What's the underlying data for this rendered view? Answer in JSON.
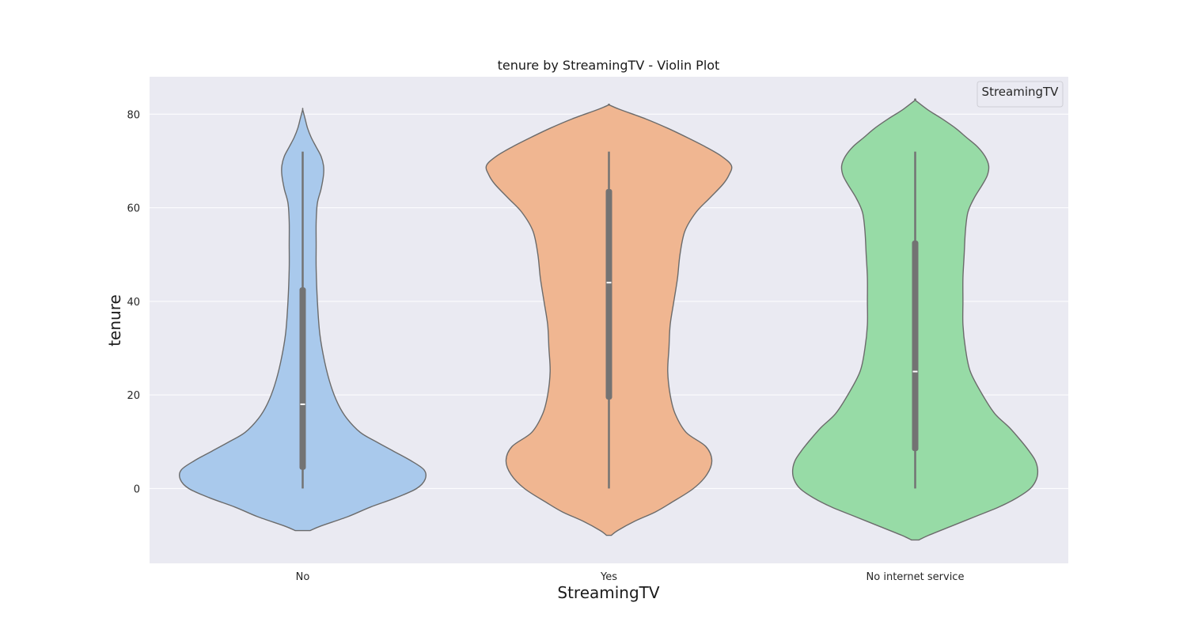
{
  "chart_data": {
    "type": "violin",
    "title": "tenure by StreamingTV - Violin Plot",
    "xlabel": "StreamingTV",
    "ylabel": "tenure",
    "ylim": [
      -16,
      88
    ],
    "yticks": [
      0,
      20,
      40,
      60,
      80
    ],
    "grid": true,
    "legend": {
      "title": "StreamingTV",
      "placement": "top-right"
    },
    "categories": [
      "No",
      "Yes",
      "No internet service"
    ],
    "violins": [
      {
        "category": "No",
        "color": "#a9c9ec",
        "min": 0,
        "q1": 4,
        "median": 18,
        "q3": 43,
        "max": 72,
        "kde_extent": [
          -9,
          81
        ],
        "density": [
          [
            -9,
            0.06
          ],
          [
            -8,
            0.15
          ],
          [
            -6,
            0.37
          ],
          [
            -4,
            0.55
          ],
          [
            -2,
            0.76
          ],
          [
            0,
            0.93
          ],
          [
            2,
            1.0
          ],
          [
            4,
            0.99
          ],
          [
            6,
            0.88
          ],
          [
            8,
            0.74
          ],
          [
            10,
            0.6
          ],
          [
            12,
            0.47
          ],
          [
            15,
            0.36
          ],
          [
            18,
            0.29
          ],
          [
            22,
            0.23
          ],
          [
            27,
            0.18
          ],
          [
            33,
            0.14
          ],
          [
            40,
            0.12
          ],
          [
            47,
            0.11
          ],
          [
            52,
            0.11
          ],
          [
            57,
            0.11
          ],
          [
            61,
            0.12
          ],
          [
            64,
            0.15
          ],
          [
            67,
            0.17
          ],
          [
            69,
            0.17
          ],
          [
            71,
            0.15
          ],
          [
            73,
            0.11
          ],
          [
            75,
            0.07
          ],
          [
            77,
            0.04
          ],
          [
            79,
            0.02
          ],
          [
            81,
            0.0
          ]
        ]
      },
      {
        "category": "Yes",
        "color": "#f0b691",
        "min": 0,
        "q1": 19,
        "median": 44,
        "q3": 64,
        "max": 72,
        "kde_extent": [
          -10,
          82
        ],
        "density": [
          [
            -10,
            0.02
          ],
          [
            -9,
            0.07
          ],
          [
            -7,
            0.21
          ],
          [
            -5,
            0.38
          ],
          [
            -3,
            0.51
          ],
          [
            0,
            0.69
          ],
          [
            3,
            0.8
          ],
          [
            6,
            0.84
          ],
          [
            9,
            0.79
          ],
          [
            12,
            0.63
          ],
          [
            16,
            0.54
          ],
          [
            20,
            0.5
          ],
          [
            25,
            0.48
          ],
          [
            30,
            0.49
          ],
          [
            35,
            0.5
          ],
          [
            40,
            0.53
          ],
          [
            45,
            0.56
          ],
          [
            50,
            0.58
          ],
          [
            55,
            0.62
          ],
          [
            59,
            0.71
          ],
          [
            62,
            0.82
          ],
          [
            65,
            0.93
          ],
          [
            67,
            0.98
          ],
          [
            69,
            1.0
          ],
          [
            71,
            0.92
          ],
          [
            73,
            0.79
          ],
          [
            75,
            0.64
          ],
          [
            77,
            0.48
          ],
          [
            79,
            0.3
          ],
          [
            81,
            0.09
          ],
          [
            82,
            0.0
          ]
        ]
      },
      {
        "category": "No internet service",
        "color": "#97dba6",
        "min": 0,
        "q1": 8,
        "median": 25,
        "q3": 53,
        "max": 72,
        "kde_extent": [
          -11,
          83
        ],
        "density": [
          [
            -11,
            0.03
          ],
          [
            -10,
            0.11
          ],
          [
            -8,
            0.3
          ],
          [
            -6,
            0.49
          ],
          [
            -4,
            0.68
          ],
          [
            -2,
            0.83
          ],
          [
            0,
            0.94
          ],
          [
            2,
            0.99
          ],
          [
            4,
            1.0
          ],
          [
            6,
            0.98
          ],
          [
            8,
            0.93
          ],
          [
            10,
            0.87
          ],
          [
            13,
            0.77
          ],
          [
            16,
            0.65
          ],
          [
            20,
            0.55
          ],
          [
            25,
            0.45
          ],
          [
            30,
            0.41
          ],
          [
            35,
            0.39
          ],
          [
            40,
            0.39
          ],
          [
            45,
            0.39
          ],
          [
            50,
            0.4
          ],
          [
            55,
            0.41
          ],
          [
            59,
            0.43
          ],
          [
            62,
            0.48
          ],
          [
            65,
            0.55
          ],
          [
            67,
            0.59
          ],
          [
            69,
            0.6
          ],
          [
            71,
            0.57
          ],
          [
            73,
            0.51
          ],
          [
            75,
            0.42
          ],
          [
            77,
            0.33
          ],
          [
            79,
            0.22
          ],
          [
            81,
            0.1
          ],
          [
            83,
            0.0
          ]
        ]
      }
    ]
  }
}
